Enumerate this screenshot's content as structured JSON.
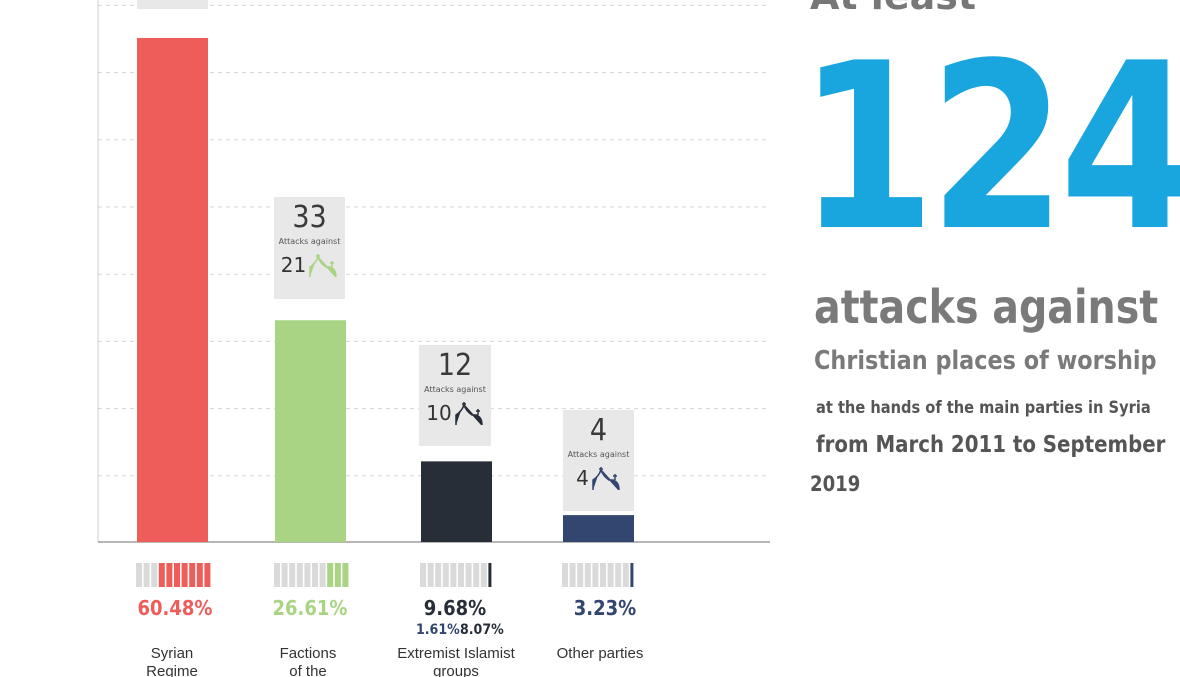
{
  "chart_data": {
    "type": "bar",
    "categories": [
      "Syrian Regime",
      "Factions of the",
      "Extremist Islamist groups",
      "Other parties"
    ],
    "values": [
      75,
      33,
      12,
      4
    ],
    "percentages": [
      "60.48%",
      "26.61%",
      "9.68%",
      "3.23%"
    ],
    "sub_percentages": [
      null,
      null,
      [
        "1.61%",
        "8.07%"
      ],
      null
    ],
    "box_totals": [
      null,
      "33",
      "12",
      "4"
    ],
    "box_caption": "Attacks against",
    "box_icon_counts": [
      null,
      "21",
      "10",
      "4"
    ],
    "colors": [
      "#ef5d5a",
      "#a8d483",
      "#272e38",
      "#33466f"
    ],
    "grid": true,
    "grid_style": "dashed"
  },
  "infographic": {
    "lead": "At least",
    "number": "124",
    "line1": "attacks against",
    "line2": "Christian places of worship",
    "line3": "at the hands of the main parties in Syria",
    "line4": "from March 2011 to September",
    "line5": "2019",
    "number_color": "#19a6de"
  }
}
